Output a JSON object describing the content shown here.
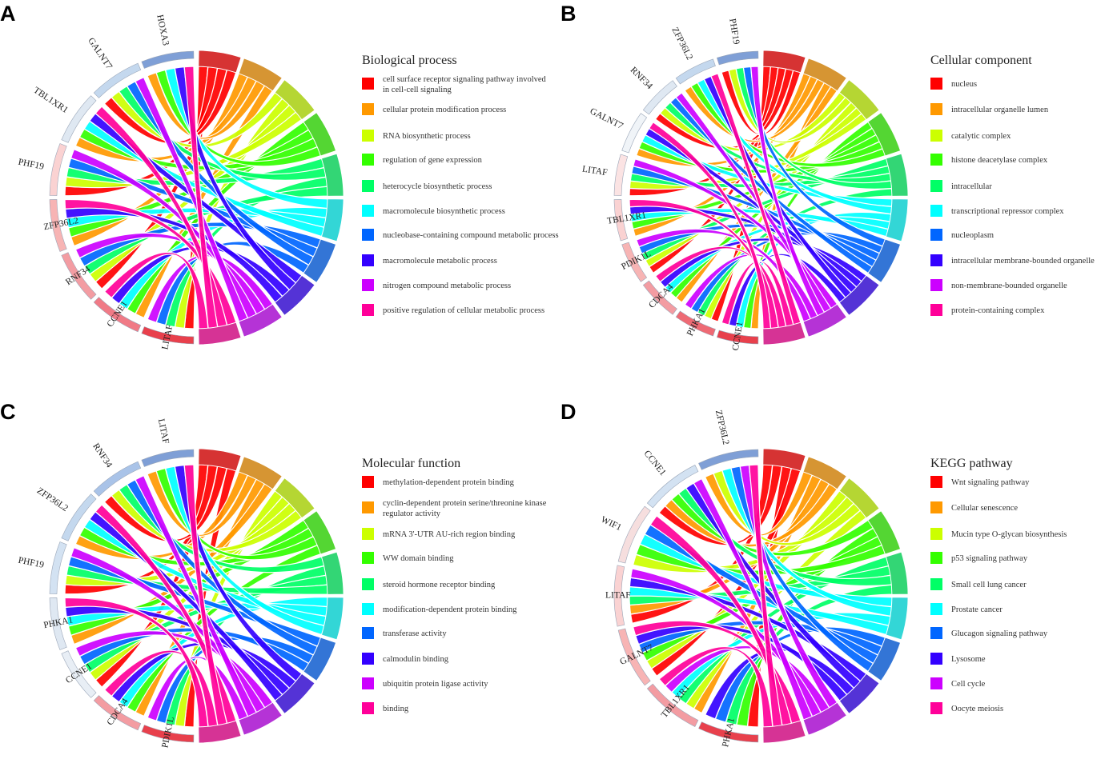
{
  "panels": [
    {
      "letter": "A",
      "legend_title": "Biological process",
      "genes": [
        "LITAF",
        "CCNE1",
        "RNF34",
        "ZFP36L2",
        "PHF19",
        "TBL1XR1",
        "GALNT7",
        "HOXA3"
      ],
      "gene_colors": [
        "#e8404c",
        "#f07a86",
        "#f39ca2",
        "#f7b4b4",
        "#fad2d2",
        "#dfe8f2",
        "#c4d8ee",
        "#7f9fd6"
      ],
      "terms": [
        "cell surface receptor signaling pathway involved in cell-cell signaling",
        "cellular protein modification process",
        "RNA biosynthetic process",
        "regulation of gene expression",
        "heterocycle biosynthetic process",
        "macromolecule biosynthetic process",
        "nucleobase-containing compound metabolic process",
        "macromolecule metabolic process",
        "nitrogen compound metabolic process",
        "positive regulation of cellular metabolic process"
      ],
      "term_colors": [
        "#ff0000",
        "#ff9900",
        "#ccff00",
        "#33ff00",
        "#00ff66",
        "#00ffff",
        "#0066ff",
        "#3300ff",
        "#cc00ff",
        "#ff0099"
      ]
    },
    {
      "letter": "B",
      "legend_title": "Cellular component",
      "genes": [
        "CCNE1",
        "PHKA1",
        "CDCA4",
        "PDIK1L",
        "TBL1XR1",
        "LITAF",
        "GALNT7",
        "RNF34",
        "ZFP36L2",
        "PHF19"
      ],
      "gene_colors": [
        "#e8404c",
        "#ee6a74",
        "#f39ca2",
        "#f7b4b4",
        "#fad2d2",
        "#fbe3e3",
        "#f0f4f8",
        "#dfe8f2",
        "#c4d8ee",
        "#7f9fd6"
      ],
      "terms": [
        "nucleus",
        "intracellular organelle lumen",
        "catalytic complex",
        "histone deacetylase complex",
        "intracellular",
        "transcriptional repressor complex",
        "nucleoplasm",
        "intracellular membrane-bounded organelle",
        "non-membrane-bounded organelle",
        "protein-containing complex"
      ],
      "term_colors": [
        "#ff0000",
        "#ff9900",
        "#ccff00",
        "#33ff00",
        "#00ff66",
        "#00ffff",
        "#0066ff",
        "#3300ff",
        "#cc00ff",
        "#ff0099"
      ]
    },
    {
      "letter": "C",
      "legend_title": "Molecular function",
      "genes": [
        "PDIK1L",
        "CDCA4",
        "CCNE1",
        "PHKA1",
        "PHF19",
        "ZFP36L2",
        "RNF34",
        "LITAF"
      ],
      "gene_colors": [
        "#e8404c",
        "#f39ca2",
        "#e8eef5",
        "#dfe8f2",
        "#d3e2f2",
        "#c4d8ee",
        "#a9c3e8",
        "#7f9fd6"
      ],
      "terms": [
        "methylation-dependent protein binding",
        "cyclin-dependent protein serine/threonine kinase regulator activity",
        "mRNA 3'-UTR AU-rich region binding",
        "WW domain binding",
        "steroid hormone receptor binding",
        "modification-dependent protein binding",
        "transferase activity",
        "calmodulin binding",
        "ubiquitin protein ligase activity",
        "binding"
      ],
      "term_colors": [
        "#ff0000",
        "#ff9900",
        "#ccff00",
        "#33ff00",
        "#00ff66",
        "#00ffff",
        "#0066ff",
        "#3300ff",
        "#cc00ff",
        "#ff0099"
      ]
    },
    {
      "letter": "D",
      "legend_title": "KEGG pathway",
      "genes": [
        "PHKA1",
        "TBL1XR1",
        "GALNT7",
        "LITAF",
        "WIF1",
        "CCNE1",
        "ZFP36L2"
      ],
      "gene_colors": [
        "#e8404c",
        "#f39ca2",
        "#f7b4b4",
        "#fad2d2",
        "#f6dede",
        "#d3e2f2",
        "#7f9fd6"
      ],
      "terms": [
        "Wnt signaling pathway",
        "Cellular senescence",
        "Mucin type O-glycan biosynthesis",
        "p53 signaling pathway",
        "Small cell lung cancer",
        "Prostate cancer",
        "Glucagon signaling pathway",
        "Lysosome",
        "Cell cycle",
        "Oocyte meiosis"
      ],
      "term_colors": [
        "#ff0000",
        "#ff9900",
        "#ccff00",
        "#33ff00",
        "#00ff66",
        "#00ffff",
        "#0066ff",
        "#3300ff",
        "#cc00ff",
        "#ff0099"
      ]
    }
  ],
  "chart_data": [
    {
      "type": "chord",
      "title": "Biological process",
      "sources": [
        "LITAF",
        "CCNE1",
        "RNF34",
        "ZFP36L2",
        "PHF19",
        "TBL1XR1",
        "GALNT7",
        "HOXA3"
      ],
      "targets": [
        "cell surface receptor signaling pathway involved in cell-cell signaling",
        "cellular protein modification process",
        "RNA biosynthetic process",
        "regulation of gene expression",
        "heterocycle biosynthetic process",
        "macromolecule biosynthetic process",
        "nucleobase-containing compound metabolic process",
        "macromolecule metabolic process",
        "nitrogen compound metabolic process",
        "positive regulation of cellular metabolic process"
      ]
    },
    {
      "type": "chord",
      "title": "Cellular component",
      "sources": [
        "CCNE1",
        "PHKA1",
        "CDCA4",
        "PDIK1L",
        "TBL1XR1",
        "LITAF",
        "GALNT7",
        "RNF34",
        "ZFP36L2",
        "PHF19"
      ],
      "targets": [
        "nucleus",
        "intracellular organelle lumen",
        "catalytic complex",
        "histone deacetylase complex",
        "intracellular",
        "transcriptional repressor complex",
        "nucleoplasm",
        "intracellular membrane-bounded organelle",
        "non-membrane-bounded organelle",
        "protein-containing complex"
      ]
    },
    {
      "type": "chord",
      "title": "Molecular function",
      "sources": [
        "PDIK1L",
        "CDCA4",
        "CCNE1",
        "PHKA1",
        "PHF19",
        "ZFP36L2",
        "RNF34",
        "LITAF"
      ],
      "targets": [
        "methylation-dependent protein binding",
        "cyclin-dependent protein serine/threonine kinase regulator activity",
        "mRNA 3'-UTR AU-rich region binding",
        "WW domain binding",
        "steroid hormone receptor binding",
        "modification-dependent protein binding",
        "transferase activity",
        "calmodulin binding",
        "ubiquitin protein ligase activity",
        "binding"
      ]
    },
    {
      "type": "chord",
      "title": "KEGG pathway",
      "sources": [
        "PHKA1",
        "TBL1XR1",
        "GALNT7",
        "LITAF",
        "WIF1",
        "CCNE1",
        "ZFP36L2"
      ],
      "targets": [
        "Wnt signaling pathway",
        "Cellular senescence",
        "Mucin type O-glycan biosynthesis",
        "p53 signaling pathway",
        "Small cell lung cancer",
        "Prostate cancer",
        "Glucagon signaling pathway",
        "Lysosome",
        "Cell cycle",
        "Oocyte meiosis"
      ]
    }
  ]
}
